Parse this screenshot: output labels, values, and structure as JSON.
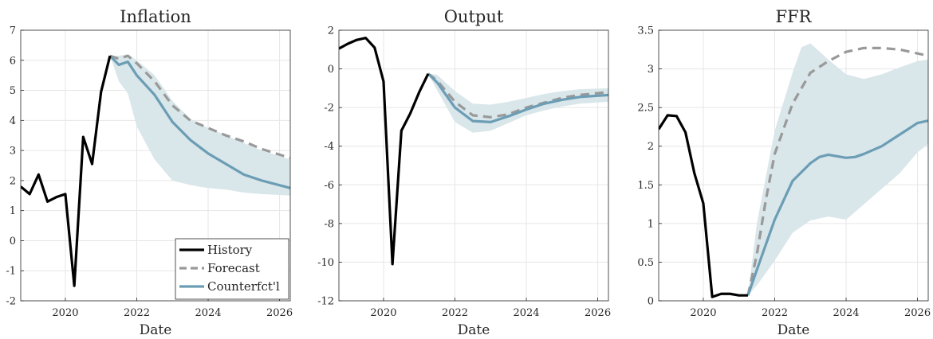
{
  "colors": {
    "history": "#000000",
    "forecast": "#999999",
    "counterfactual": "#6b9db5",
    "band": "#d9e6ea"
  },
  "legend": {
    "items": [
      {
        "label": "History",
        "series": "history"
      },
      {
        "label": "Forecast",
        "series": "forecast"
      },
      {
        "label": "Counterfct'l",
        "series": "counterfactual"
      }
    ]
  },
  "chart_data": [
    {
      "type": "line",
      "title": "Inflation",
      "xlabel": "Date",
      "ylabel": "",
      "xlim": [
        2018.75,
        2026.3
      ],
      "ylim": [
        -2,
        7
      ],
      "xticks": [
        2020,
        2022,
        2024,
        2026
      ],
      "yticks": [
        -2,
        -1,
        0,
        1,
        2,
        3,
        4,
        5,
        6,
        7
      ],
      "grid": true,
      "legend_position": "bottom-right",
      "series": [
        {
          "key": "history",
          "values": [
            [
              2018.75,
              1.8
            ],
            [
              2019.0,
              1.55
            ],
            [
              2019.25,
              2.2
            ],
            [
              2019.5,
              1.3
            ],
            [
              2019.75,
              1.45
            ],
            [
              2020.0,
              1.55
            ],
            [
              2020.25,
              -1.5
            ],
            [
              2020.5,
              3.45
            ],
            [
              2020.75,
              2.55
            ],
            [
              2021.0,
              4.95
            ],
            [
              2021.25,
              6.15
            ]
          ]
        },
        {
          "key": "forecast",
          "values": [
            [
              2021.25,
              6.15
            ],
            [
              2021.5,
              6.05
            ],
            [
              2021.75,
              6.15
            ],
            [
              2022.0,
              5.9
            ],
            [
              2022.5,
              5.3
            ],
            [
              2023.0,
              4.5
            ],
            [
              2023.5,
              4.0
            ],
            [
              2024.0,
              3.75
            ],
            [
              2024.5,
              3.5
            ],
            [
              2025.0,
              3.3
            ],
            [
              2025.5,
              3.05
            ],
            [
              2026.3,
              2.75
            ]
          ]
        },
        {
          "key": "counterfactual",
          "values": [
            [
              2021.25,
              6.15
            ],
            [
              2021.5,
              5.85
            ],
            [
              2021.75,
              5.95
            ],
            [
              2022.0,
              5.5
            ],
            [
              2022.5,
              4.85
            ],
            [
              2023.0,
              3.95
            ],
            [
              2023.5,
              3.35
            ],
            [
              2024.0,
              2.9
            ],
            [
              2024.5,
              2.55
            ],
            [
              2025.0,
              2.2
            ],
            [
              2025.5,
              2.0
            ],
            [
              2026.3,
              1.75
            ]
          ]
        }
      ],
      "band": {
        "upper": [
          [
            2021.25,
            6.15
          ],
          [
            2021.5,
            6.15
          ],
          [
            2021.75,
            6.2
          ],
          [
            2022.0,
            6.0
          ],
          [
            2022.5,
            5.5
          ],
          [
            2023.0,
            4.65
          ],
          [
            2023.5,
            4.05
          ],
          [
            2024.0,
            3.75
          ],
          [
            2024.5,
            3.5
          ],
          [
            2025.0,
            3.25
          ],
          [
            2025.5,
            3.0
          ],
          [
            2026.3,
            2.7
          ]
        ],
        "lower": [
          [
            2021.25,
            6.15
          ],
          [
            2021.5,
            5.3
          ],
          [
            2021.75,
            4.9
          ],
          [
            2022.0,
            3.8
          ],
          [
            2022.5,
            2.7
          ],
          [
            2023.0,
            2.0
          ],
          [
            2023.5,
            1.85
          ],
          [
            2024.0,
            1.75
          ],
          [
            2024.5,
            1.7
          ],
          [
            2025.0,
            1.6
          ],
          [
            2025.5,
            1.55
          ],
          [
            2026.3,
            1.5
          ]
        ]
      }
    },
    {
      "type": "line",
      "title": "Output",
      "xlabel": "Date",
      "ylabel": "",
      "xlim": [
        2018.75,
        2026.3
      ],
      "ylim": [
        -12,
        2
      ],
      "xticks": [
        2020,
        2022,
        2024,
        2026
      ],
      "yticks": [
        -12,
        -10,
        -8,
        -6,
        -4,
        -2,
        0,
        2
      ],
      "grid": true,
      "series": [
        {
          "key": "history",
          "values": [
            [
              2018.75,
              1.05
            ],
            [
              2019.0,
              1.3
            ],
            [
              2019.25,
              1.5
            ],
            [
              2019.5,
              1.6
            ],
            [
              2019.75,
              1.1
            ],
            [
              2020.0,
              -0.65
            ],
            [
              2020.25,
              -10.1
            ],
            [
              2020.5,
              -3.2
            ],
            [
              2020.75,
              -2.3
            ],
            [
              2021.0,
              -1.2
            ],
            [
              2021.25,
              -0.25
            ]
          ]
        },
        {
          "key": "forecast",
          "values": [
            [
              2021.25,
              -0.25
            ],
            [
              2021.5,
              -0.6
            ],
            [
              2022.0,
              -1.7
            ],
            [
              2022.5,
              -2.4
            ],
            [
              2023.0,
              -2.5
            ],
            [
              2023.5,
              -2.35
            ],
            [
              2024.0,
              -2.0
            ],
            [
              2024.5,
              -1.75
            ],
            [
              2025.0,
              -1.5
            ],
            [
              2025.5,
              -1.35
            ],
            [
              2026.3,
              -1.2
            ]
          ]
        },
        {
          "key": "counterfactual",
          "values": [
            [
              2021.25,
              -0.25
            ],
            [
              2021.5,
              -0.7
            ],
            [
              2022.0,
              -2.0
            ],
            [
              2022.5,
              -2.7
            ],
            [
              2023.0,
              -2.75
            ],
            [
              2023.5,
              -2.45
            ],
            [
              2024.0,
              -2.1
            ],
            [
              2024.5,
              -1.8
            ],
            [
              2025.0,
              -1.6
            ],
            [
              2025.5,
              -1.45
            ],
            [
              2026.3,
              -1.35
            ]
          ]
        }
      ],
      "band": {
        "upper": [
          [
            2021.25,
            -0.25
          ],
          [
            2021.5,
            -0.3
          ],
          [
            2022.0,
            -1.15
          ],
          [
            2022.5,
            -1.8
          ],
          [
            2023.0,
            -1.85
          ],
          [
            2023.5,
            -1.7
          ],
          [
            2024.0,
            -1.5
          ],
          [
            2024.5,
            -1.3
          ],
          [
            2025.0,
            -1.15
          ],
          [
            2025.5,
            -1.05
          ],
          [
            2026.3,
            -1.0
          ]
        ],
        "lower": [
          [
            2021.25,
            -0.25
          ],
          [
            2021.5,
            -1.1
          ],
          [
            2022.0,
            -2.75
          ],
          [
            2022.5,
            -3.3
          ],
          [
            2023.0,
            -3.2
          ],
          [
            2023.5,
            -2.8
          ],
          [
            2024.0,
            -2.4
          ],
          [
            2024.5,
            -2.15
          ],
          [
            2025.0,
            -1.95
          ],
          [
            2025.5,
            -1.8
          ],
          [
            2026.3,
            -1.7
          ]
        ]
      }
    },
    {
      "type": "line",
      "title": "FFR",
      "xlabel": "Date",
      "ylabel": "",
      "xlim": [
        2018.75,
        2026.3
      ],
      "ylim": [
        0,
        3.5
      ],
      "xticks": [
        2020,
        2022,
        2024,
        2026
      ],
      "yticks": [
        0,
        0.5,
        1,
        1.5,
        2,
        2.5,
        3,
        3.5
      ],
      "grid": true,
      "series": [
        {
          "key": "history",
          "values": [
            [
              2018.75,
              2.22
            ],
            [
              2019.0,
              2.4
            ],
            [
              2019.25,
              2.39
            ],
            [
              2019.5,
              2.18
            ],
            [
              2019.75,
              1.65
            ],
            [
              2020.0,
              1.26
            ],
            [
              2020.25,
              0.05
            ],
            [
              2020.5,
              0.09
            ],
            [
              2020.75,
              0.09
            ],
            [
              2021.0,
              0.07
            ],
            [
              2021.25,
              0.07
            ]
          ]
        },
        {
          "key": "forecast",
          "values": [
            [
              2021.25,
              0.07
            ],
            [
              2021.5,
              0.6
            ],
            [
              2021.75,
              1.3
            ],
            [
              2022.0,
              1.9
            ],
            [
              2022.5,
              2.55
            ],
            [
              2023.0,
              2.95
            ],
            [
              2023.5,
              3.1
            ],
            [
              2024.0,
              3.22
            ],
            [
              2024.5,
              3.27
            ],
            [
              2025.0,
              3.27
            ],
            [
              2025.5,
              3.25
            ],
            [
              2026.3,
              3.17
            ]
          ]
        },
        {
          "key": "counterfactual",
          "values": [
            [
              2021.25,
              0.07
            ],
            [
              2021.5,
              0.4
            ],
            [
              2022.0,
              1.05
            ],
            [
              2022.5,
              1.55
            ],
            [
              2023.0,
              1.78
            ],
            [
              2023.25,
              1.86
            ],
            [
              2023.5,
              1.89
            ],
            [
              2024.0,
              1.85
            ],
            [
              2024.25,
              1.86
            ],
            [
              2024.5,
              1.9
            ],
            [
              2025.0,
              2.0
            ],
            [
              2025.5,
              2.15
            ],
            [
              2026.0,
              2.3
            ],
            [
              2026.3,
              2.33
            ]
          ]
        }
      ],
      "band": {
        "upper": [
          [
            2021.25,
            0.07
          ],
          [
            2021.5,
            1.0
          ],
          [
            2022.0,
            2.2
          ],
          [
            2022.5,
            2.95
          ],
          [
            2022.75,
            3.28
          ],
          [
            2023.0,
            3.33
          ],
          [
            2023.5,
            3.12
          ],
          [
            2024.0,
            2.93
          ],
          [
            2024.5,
            2.87
          ],
          [
            2025.0,
            2.93
          ],
          [
            2025.5,
            3.02
          ],
          [
            2026.0,
            3.1
          ],
          [
            2026.3,
            3.12
          ]
        ],
        "lower": [
          [
            2021.25,
            0.07
          ],
          [
            2021.5,
            0.2
          ],
          [
            2022.0,
            0.52
          ],
          [
            2022.5,
            0.88
          ],
          [
            2023.0,
            1.04
          ],
          [
            2023.5,
            1.09
          ],
          [
            2024.0,
            1.05
          ],
          [
            2024.5,
            1.25
          ],
          [
            2025.0,
            1.45
          ],
          [
            2025.5,
            1.65
          ],
          [
            2026.0,
            1.92
          ],
          [
            2026.3,
            2.03
          ]
        ]
      }
    }
  ]
}
